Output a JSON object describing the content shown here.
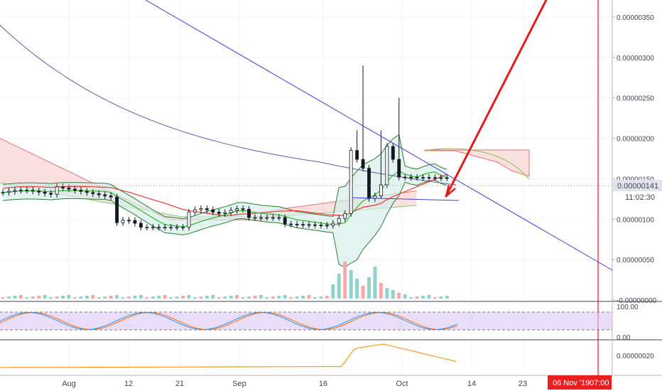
{
  "chart_data": [
    {
      "type": "candlestick",
      "panel": "price",
      "x_ticks": [
        "Aug",
        "12",
        "21",
        "Sep",
        "16",
        "Oct",
        "14",
        "23"
      ],
      "y_ticks": [
        "0.00000350",
        "0.00000300",
        "0.00000250",
        "0.00000200",
        "0.00000150",
        "0.00000100",
        "0.00000050",
        "-0.00000000"
      ],
      "ylim": [
        0,
        3.7e-06
      ],
      "current_price_label": "0.00000141",
      "countdown_label": "11:02:30",
      "highlighted_date_label": "06 Nov '19",
      "highlighted_time_label": "07:00",
      "colors": {
        "up": "#26a69a",
        "down": "#ef5350",
        "trendline": "#3f3fd6",
        "arrow": "#e31b1b",
        "price_label_bg": "#e0e3eb",
        "date_label_bg": "#e91e1e",
        "vertical_line": "#e31b1b",
        "cloud": "#f6c9c6",
        "band_fill": "#e5f3f1",
        "ma_green": "#2fb82f",
        "ma_red": "#e53935"
      }
    },
    {
      "type": "line",
      "panel": "stochastic",
      "y_ticks": [
        "100.00",
        "0.00"
      ],
      "levels": [
        80,
        20
      ],
      "colors": {
        "k": "#2196f3",
        "d": "#ff6d00",
        "band": "#dcc6f7"
      }
    },
    {
      "type": "line",
      "panel": "indicator",
      "y_ticks": [
        "0.00000020"
      ],
      "colors": {
        "line": "#f59a23"
      }
    }
  ]
}
